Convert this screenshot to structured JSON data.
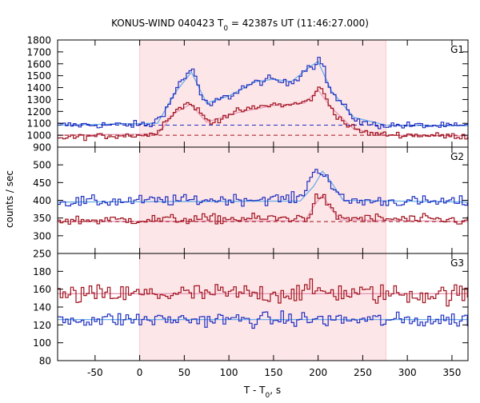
{
  "chart_data": {
    "type": "line",
    "title": "KONUS-WIND 040423 T",
    "title_sub": "0",
    "title_rest": " = 42387s UT (11:46:27.000)",
    "xlabel": "T - T",
    "xlabel_sub": "0",
    "xlabel_rest": ", s",
    "ylabel": "counts / sec",
    "xlim": [
      -92,
      368
    ],
    "x_ticks": [
      -50,
      0,
      50,
      100,
      150,
      200,
      250,
      300,
      350
    ],
    "shaded_interval": [
      0,
      276
    ],
    "grid": false,
    "colors": {
      "series_blue": "#1f2fc0",
      "fit_blue": "#6aaee8",
      "series_red": "#a0101c",
      "fit_pink": "#e69ab8",
      "shade": "#fde6e8",
      "axis": "#000000"
    },
    "panels": [
      {
        "label": "G1",
        "ylim": [
          900,
          1800
        ],
        "y_ticks": [
          900,
          1000,
          1100,
          1200,
          1300,
          1400,
          1500,
          1600,
          1700,
          1800
        ],
        "series": [
          {
            "color": "#1f2fc0",
            "baseline": 1085,
            "noise": 22,
            "points": [
              [
                -92,
                1085
              ],
              [
                15,
                1090
              ],
              [
                20,
                1140
              ],
              [
                30,
                1220
              ],
              [
                38,
                1330
              ],
              [
                45,
                1450
              ],
              [
                52,
                1500
              ],
              [
                58,
                1560
              ],
              [
                64,
                1470
              ],
              [
                70,
                1300
              ],
              [
                78,
                1240
              ],
              [
                90,
                1310
              ],
              [
                100,
                1320
              ],
              [
                115,
                1400
              ],
              [
                130,
                1440
              ],
              [
                145,
                1470
              ],
              [
                155,
                1460
              ],
              [
                165,
                1430
              ],
              [
                175,
                1470
              ],
              [
                185,
                1550
              ],
              [
                190,
                1580
              ],
              [
                195,
                1580
              ],
              [
                200,
                1650
              ],
              [
                205,
                1610
              ],
              [
                210,
                1450
              ],
              [
                215,
                1360
              ],
              [
                222,
                1300
              ],
              [
                230,
                1230
              ],
              [
                240,
                1150
              ],
              [
                250,
                1100
              ],
              [
                265,
                1085
              ],
              [
                368,
                1075
              ]
            ]
          },
          {
            "color": "#a0101c",
            "baseline": 1000,
            "noise": 18,
            "points": [
              [
                -92,
                980
              ],
              [
                15,
                1005
              ],
              [
                25,
                1080
              ],
              [
                35,
                1170
              ],
              [
                45,
                1230
              ],
              [
                55,
                1270
              ],
              [
                62,
                1240
              ],
              [
                70,
                1170
              ],
              [
                80,
                1100
              ],
              [
                95,
                1160
              ],
              [
                110,
                1200
              ],
              [
                130,
                1230
              ],
              [
                150,
                1260
              ],
              [
                165,
                1250
              ],
              [
                180,
                1270
              ],
              [
                190,
                1290
              ],
              [
                197,
                1360
              ],
              [
                203,
                1400
              ],
              [
                210,
                1300
              ],
              [
                218,
                1190
              ],
              [
                230,
                1100
              ],
              [
                245,
                1040
              ],
              [
                260,
                1010
              ],
              [
                368,
                990
              ]
            ]
          }
        ],
        "fits": [
          {
            "color": "#6aaee8",
            "points": [
              [
                -92,
                1085
              ],
              [
                20,
                1100
              ],
              [
                40,
                1360
              ],
              [
                58,
                1530
              ],
              [
                75,
                1270
              ],
              [
                100,
                1330
              ],
              [
                130,
                1450
              ],
              [
                150,
                1470
              ],
              [
                170,
                1450
              ],
              [
                190,
                1570
              ],
              [
                200,
                1620
              ],
              [
                215,
                1370
              ],
              [
                240,
                1150
              ],
              [
                276,
                1085
              ],
              [
                368,
                1080
              ]
            ]
          },
          {
            "color": "#e69ab8",
            "points": [
              [
                -92,
                1000
              ],
              [
                20,
                1010
              ],
              [
                40,
                1190
              ],
              [
                57,
                1260
              ],
              [
                75,
                1110
              ],
              [
                110,
                1190
              ],
              [
                150,
                1250
              ],
              [
                185,
                1270
              ],
              [
                200,
                1380
              ],
              [
                215,
                1230
              ],
              [
                240,
                1050
              ],
              [
                276,
                1000
              ],
              [
                368,
                995
              ]
            ]
          }
        ],
        "dashed_levels": [
          {
            "value": 1085,
            "color": "#1f2fc0"
          },
          {
            "value": 1000,
            "color": "#a0101c"
          }
        ]
      },
      {
        "label": "G2",
        "ylim": [
          250,
          550
        ],
        "y_ticks": [
          250,
          300,
          350,
          400,
          450,
          500
        ],
        "series": [
          {
            "color": "#1f2fc0",
            "baseline": 395,
            "noise": 11,
            "points": [
              [
                -92,
                395
              ],
              [
                180,
                405
              ],
              [
                185,
                430
              ],
              [
                190,
                460
              ],
              [
                197,
                480
              ],
              [
                205,
                485
              ],
              [
                212,
                460
              ],
              [
                218,
                430
              ],
              [
                225,
                405
              ],
              [
                235,
                398
              ],
              [
                368,
                395
              ]
            ]
          },
          {
            "color": "#a0101c",
            "baseline": 343,
            "noise": 10,
            "points": [
              [
                -92,
                343
              ],
              [
                185,
                350
              ],
              [
                192,
                365
              ],
              [
                197,
                400
              ],
              [
                203,
                420
              ],
              [
                210,
                390
              ],
              [
                216,
                365
              ],
              [
                225,
                350
              ],
              [
                368,
                343
              ]
            ]
          }
        ],
        "fits": [
          {
            "color": "#6aaee8",
            "points": [
              [
                -92,
                395
              ],
              [
                180,
                398
              ],
              [
                195,
                440
              ],
              [
                205,
                482
              ],
              [
                215,
                450
              ],
              [
                228,
                400
              ],
              [
                368,
                395
              ]
            ]
          },
          {
            "color": "#e69ab8",
            "points": [
              [
                -92,
                340
              ],
              [
                185,
                342
              ],
              [
                197,
                390
              ],
              [
                205,
                415
              ],
              [
                213,
                380
              ],
              [
                225,
                345
              ],
              [
                368,
                340
              ]
            ]
          }
        ],
        "dashed_levels": [
          {
            "value": 340,
            "color": "#a0101c"
          }
        ]
      },
      {
        "label": "G3",
        "ylim": [
          80,
          200
        ],
        "y_ticks": [
          80,
          100,
          120,
          140,
          160,
          180
        ],
        "series": [
          {
            "color": "#a0101c",
            "baseline": 155,
            "noise": 8,
            "points": [
              [
                -92,
                153
              ],
              [
                50,
                155
              ],
              [
                150,
                155
              ],
              [
                200,
                158
              ],
              [
                250,
                155
              ],
              [
                368,
                154
              ]
            ]
          },
          {
            "color": "#1f2fc0",
            "baseline": 125,
            "noise": 6,
            "points": [
              [
                -92,
                126
              ],
              [
                100,
                126
              ],
              [
                200,
                126
              ],
              [
                300,
                125
              ],
              [
                368,
                126
              ]
            ]
          }
        ],
        "fits": [
          {
            "color": "#e69ab8",
            "points": [
              [
                -92,
                155
              ],
              [
                368,
                155
              ]
            ]
          },
          {
            "color": "#6aaee8",
            "points": [
              [
                -92,
                126
              ],
              [
                368,
                126
              ]
            ]
          }
        ],
        "dashed_levels": []
      }
    ]
  }
}
